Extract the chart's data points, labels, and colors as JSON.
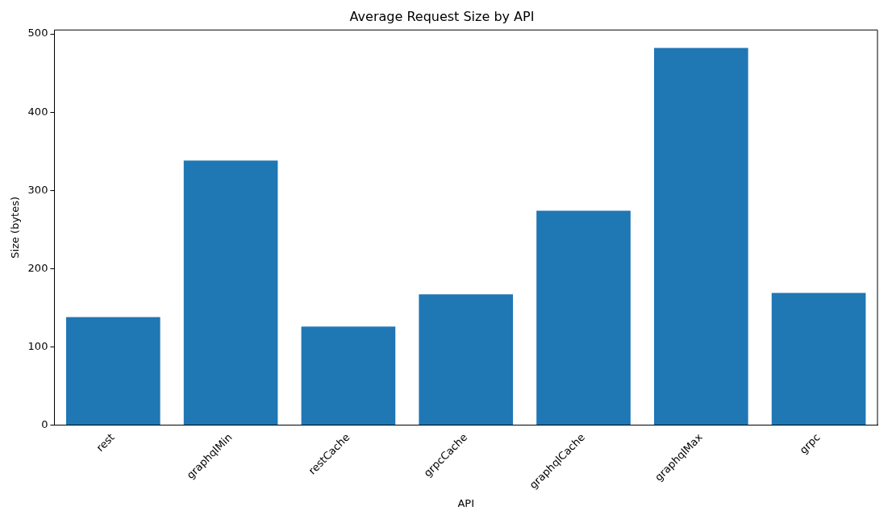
{
  "chart_data": {
    "type": "bar",
    "title": "Average Request Size by API",
    "xlabel": "API",
    "ylabel": "Size (bytes)",
    "categories": [
      "rest",
      "graphqlMin",
      "restCache",
      "grpcCache",
      "graphqlCache",
      "graphqlMax",
      "grpc"
    ],
    "values": [
      138,
      338,
      126,
      167,
      274,
      482,
      169
    ],
    "color": "#1f77b4",
    "ylim": [
      0,
      505
    ],
    "yticks": [
      0,
      100,
      200,
      300,
      400,
      500
    ],
    "grid": false
  }
}
